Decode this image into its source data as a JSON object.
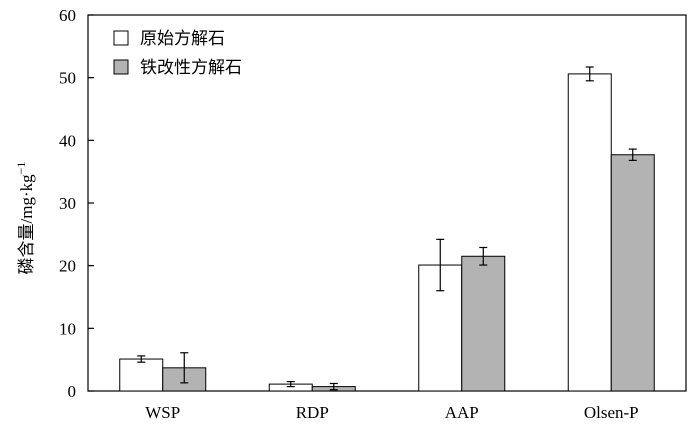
{
  "chart_data": {
    "type": "bar",
    "categories": [
      "WSP",
      "RDP",
      "AAP",
      "Olsen-P"
    ],
    "series": [
      {
        "name": "原始方解石",
        "values": [
          5.1,
          1.1,
          20.1,
          50.6
        ],
        "errors": [
          0.5,
          0.4,
          4.1,
          1.1
        ],
        "color": "#ffffff"
      },
      {
        "name": "铁改性方解石",
        "values": [
          3.7,
          0.7,
          21.5,
          37.7
        ],
        "errors": [
          2.4,
          0.5,
          1.4,
          0.9
        ],
        "color": "#b3b3b3"
      }
    ],
    "ylabel_main": "磷含量/mg·kg",
    "ylabel_sup": "−1",
    "ylim": [
      0,
      60
    ],
    "yticks": [
      "0",
      "10",
      "20",
      "30",
      "40",
      "50",
      "60"
    ],
    "grid": false,
    "legend_position": "top-left"
  }
}
